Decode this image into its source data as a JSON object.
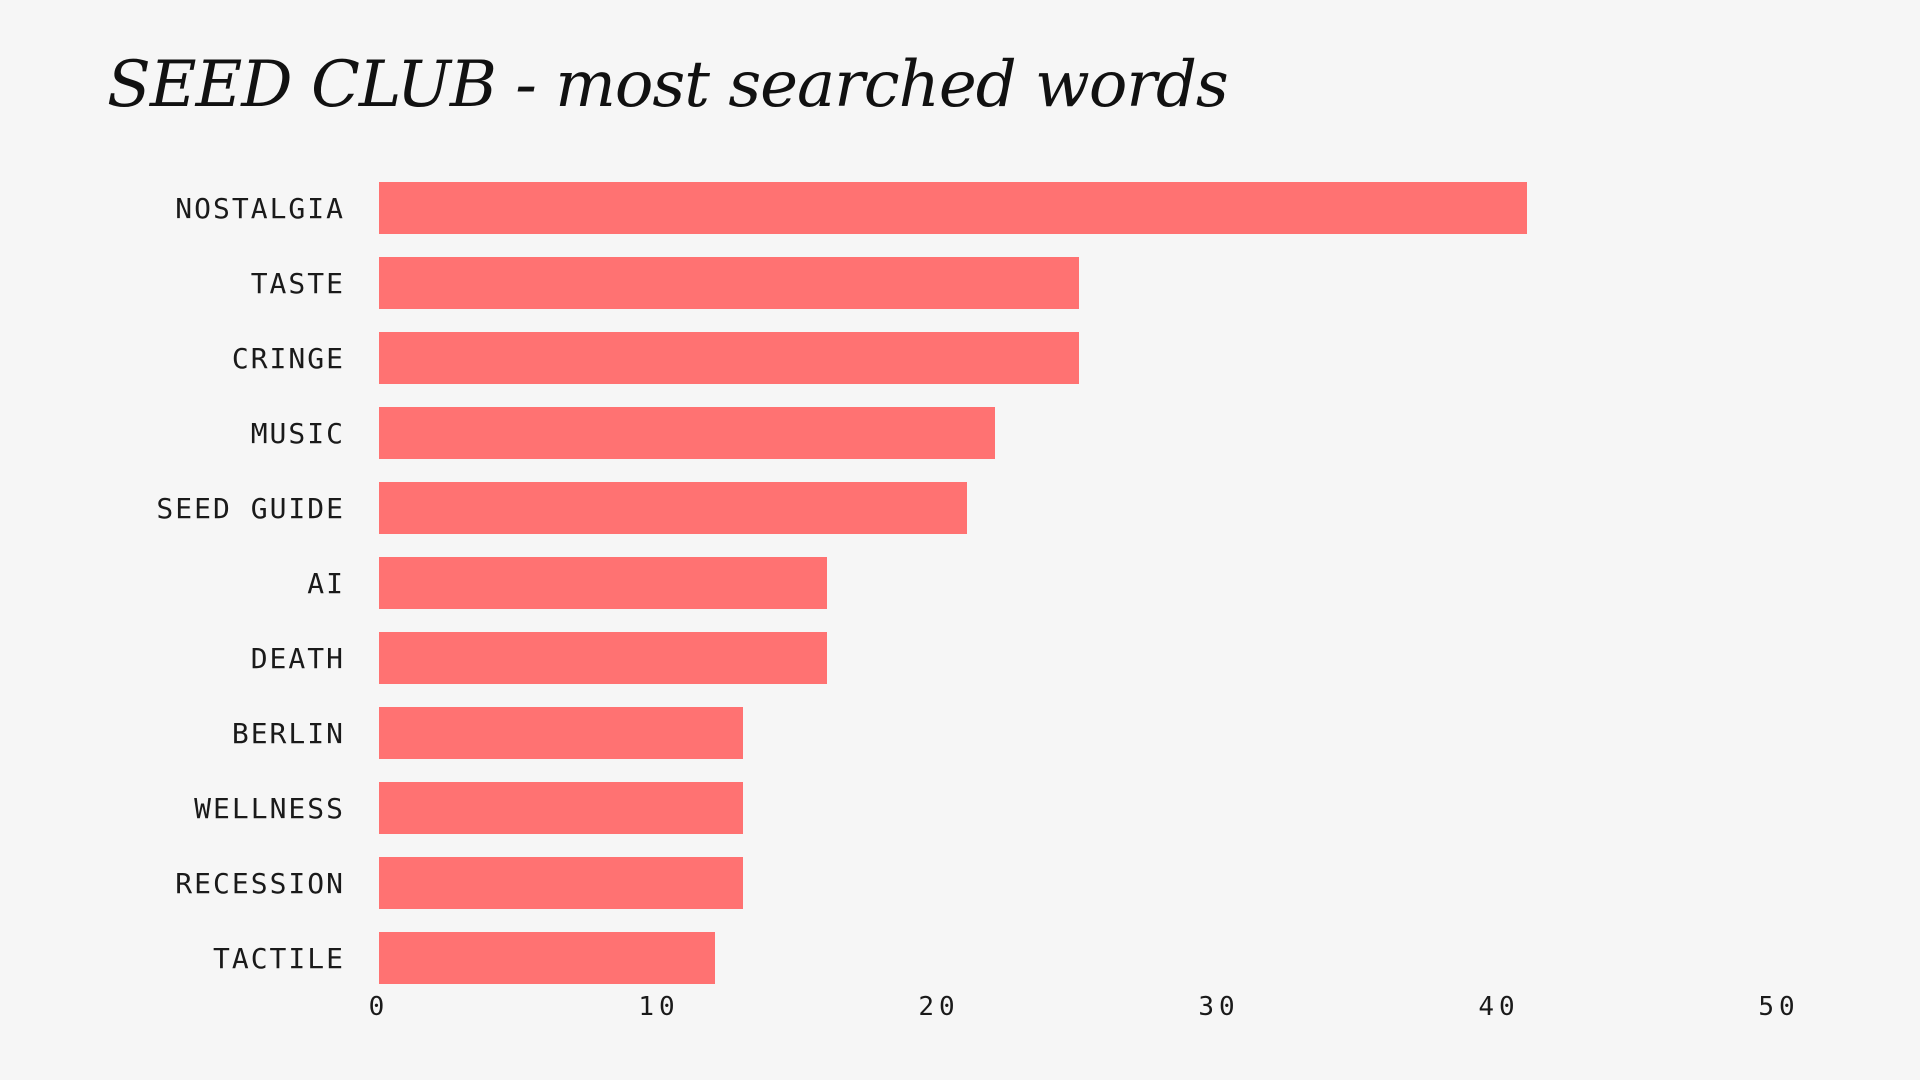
{
  "chart_data": {
    "type": "bar",
    "orientation": "horizontal",
    "title": "SEED CLUB - most searched words",
    "xlabel": "",
    "ylabel": "",
    "categories": [
      "NOSTALGIA",
      "TASTE",
      "CRINGE",
      "MUSIC",
      "SEED GUIDE",
      "AI",
      "DEATH",
      "BERLIN",
      "WELLNESS",
      "RECESSION",
      "TACTILE"
    ],
    "values": [
      41,
      25,
      25,
      22,
      21,
      16,
      16,
      13,
      13,
      13,
      12
    ],
    "xlim": [
      0,
      50
    ],
    "xticks": [
      "0",
      "10",
      "20",
      "30",
      "40",
      "50"
    ],
    "grid": false,
    "legend": "none",
    "bar_color": "#ff7272"
  }
}
